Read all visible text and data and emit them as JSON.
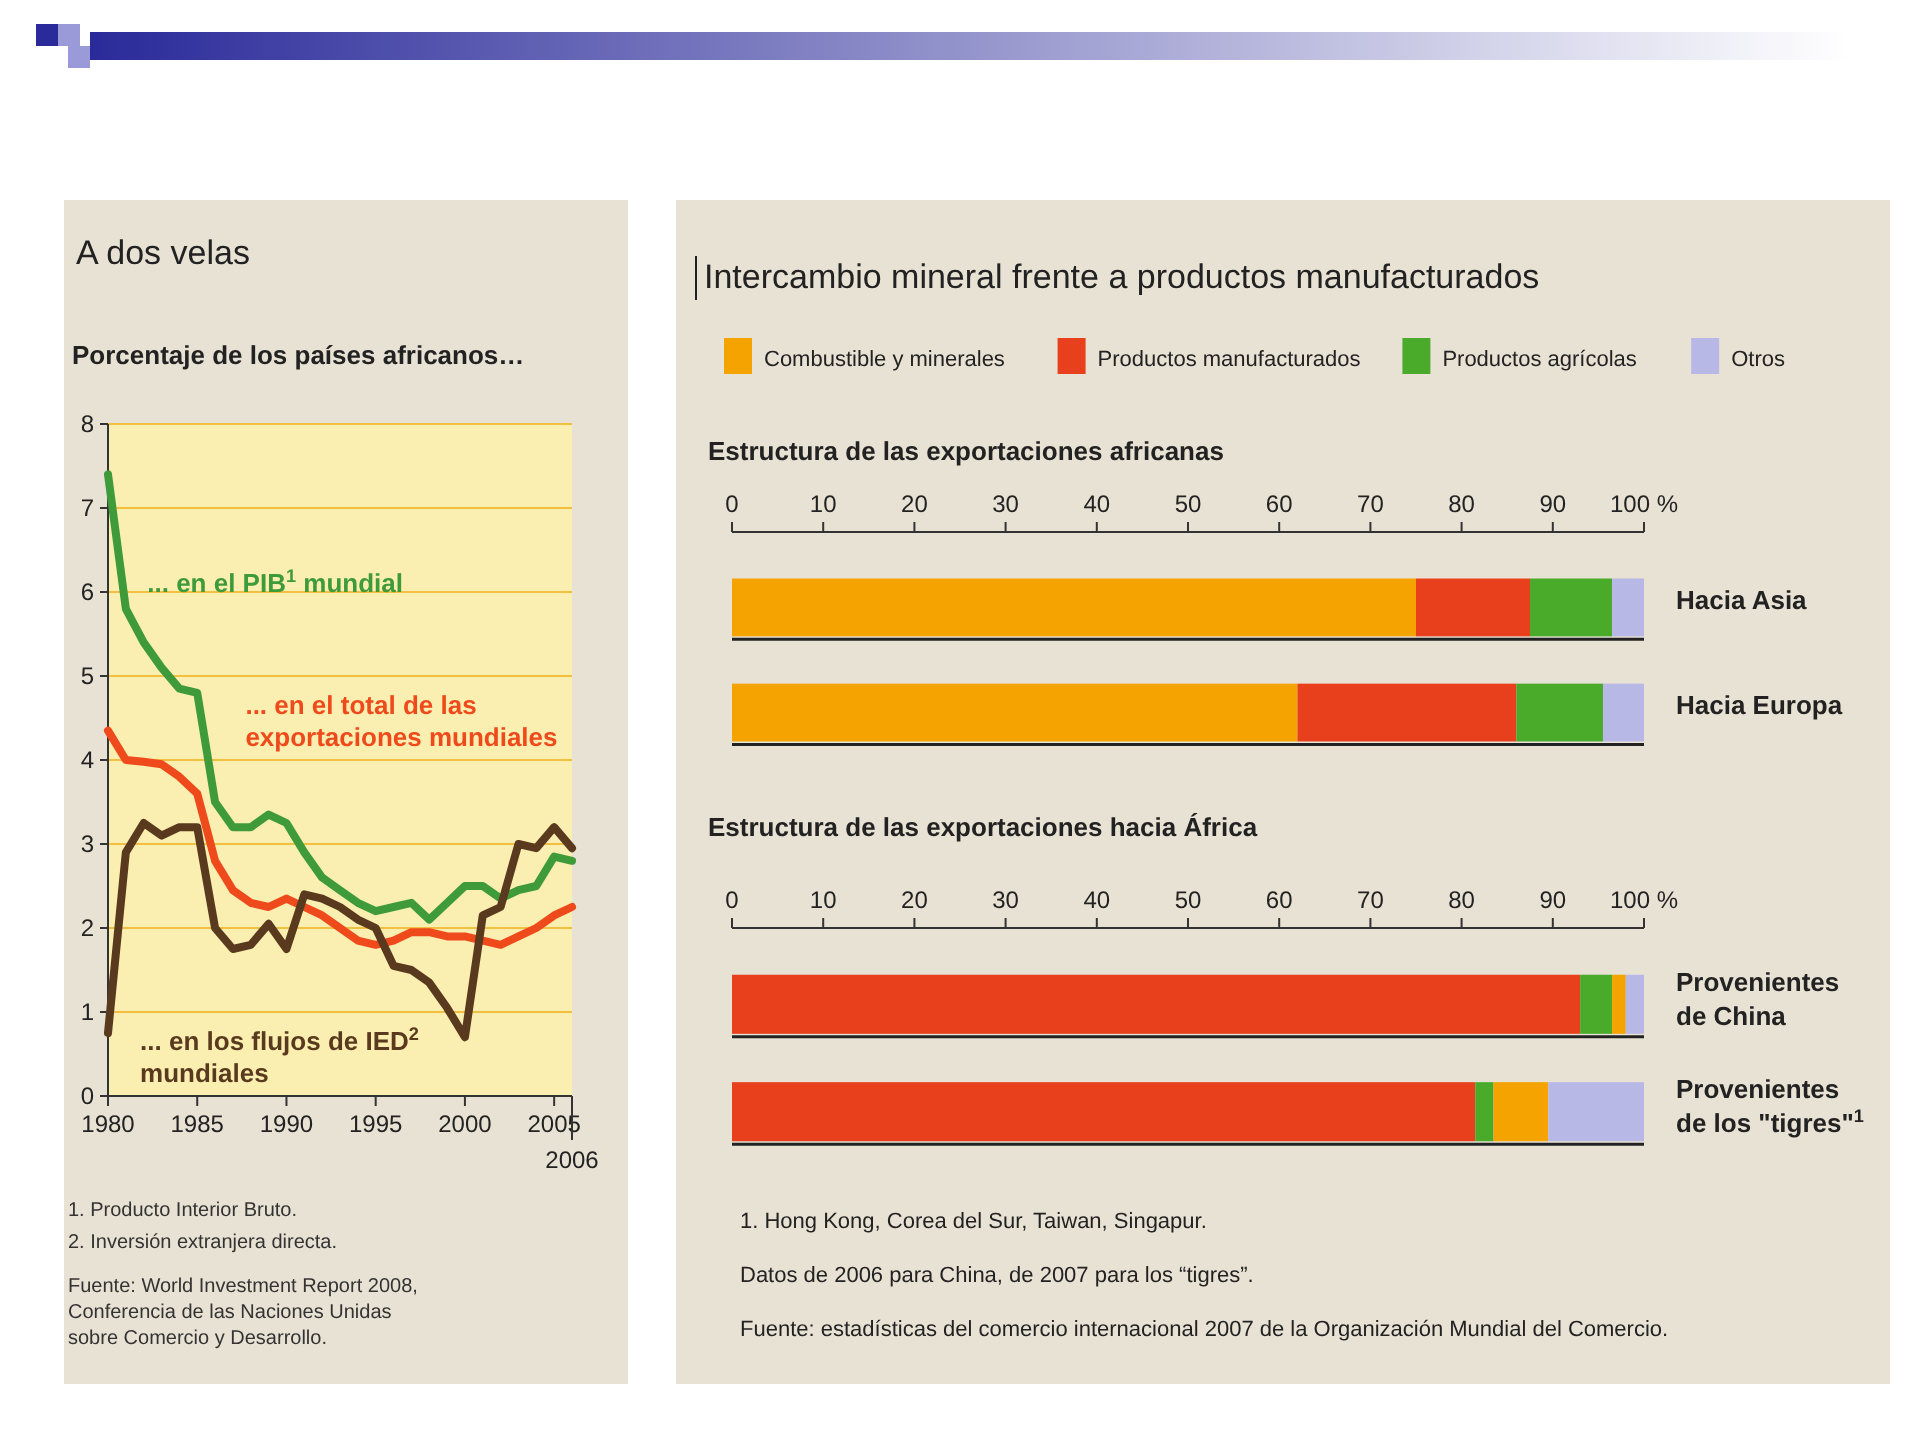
{
  "chart_data": [
    {
      "type": "line",
      "title": "A dos velas",
      "subtitle": "Porcentaje de los países africanos…",
      "x": [
        1980,
        1981,
        1982,
        1983,
        1984,
        1985,
        1986,
        1987,
        1988,
        1989,
        1990,
        1991,
        1992,
        1993,
        1994,
        1995,
        1996,
        1997,
        1998,
        1999,
        2000,
        2001,
        2002,
        2003,
        2004,
        2005,
        2006
      ],
      "series": [
        {
          "name": "... en el PIB$^{1}$ mundial",
          "color": "#3f9a3a",
          "values": [
            7.4,
            5.8,
            5.4,
            5.1,
            4.85,
            4.8,
            3.5,
            3.2,
            3.2,
            3.35,
            3.25,
            2.9,
            2.6,
            2.45,
            2.3,
            2.2,
            2.25,
            2.3,
            2.1,
            2.3,
            2.5,
            2.5,
            2.35,
            2.45,
            2.5,
            2.85,
            2.8
          ]
        },
        {
          "name": "... en el total de las\nexportaciones mundiales",
          "color": "#ee4a1c",
          "values": [
            4.35,
            4.0,
            3.98,
            3.95,
            3.8,
            3.6,
            2.8,
            2.45,
            2.3,
            2.25,
            2.35,
            2.25,
            2.15,
            2.0,
            1.85,
            1.8,
            1.85,
            1.95,
            1.95,
            1.9,
            1.9,
            1.85,
            1.8,
            1.9,
            2.0,
            2.15,
            2.25
          ]
        },
        {
          "name": "... en los flujos de IED$^{2}$\nmundiales",
          "color": "#5a3a1e",
          "values": [
            0.75,
            2.9,
            3.25,
            3.1,
            3.2,
            3.2,
            2.0,
            1.75,
            1.8,
            2.05,
            1.75,
            2.4,
            2.35,
            2.25,
            2.1,
            2.0,
            1.55,
            1.5,
            1.35,
            1.05,
            0.7,
            2.15,
            2.25,
            3.0,
            2.95,
            3.2,
            2.95
          ]
        }
      ],
      "xlim": [
        1980,
        2006
      ],
      "xticks": [
        1980,
        1985,
        1990,
        1995,
        2000,
        2005
      ],
      "ylim": [
        0,
        8
      ],
      "yticks": [
        0,
        1,
        2,
        3,
        4,
        5,
        6,
        7,
        8
      ],
      "grid": "y",
      "annotations": [
        "2006",
        "1. Producto Interior Bruto.",
        "2. Inversión extranjera directa.",
        "Fuente: World Investment Report 2008,\nConferencia de las Naciones Unidas\nsobre Comercio y Desarrollo."
      ]
    },
    {
      "type": "bar",
      "orientation": "horizontal",
      "stacked": true,
      "title": "Intercambio mineral frente a productos manufacturados",
      "subtitle": "Estructura de las exportaciones africanas",
      "categories": [
        "Hacia Asia",
        "Hacia Europa"
      ],
      "series": [
        {
          "name": "Combustible y minerales",
          "color": "#f5a300",
          "values": [
            75,
            62
          ]
        },
        {
          "name": "Productos manufacturados",
          "color": "#e8401c",
          "values": [
            12.5,
            24
          ]
        },
        {
          "name": "Productos agrícolas",
          "color": "#4aaa2a",
          "values": [
            9,
            9.5
          ]
        },
        {
          "name": "Otros",
          "color": "#b8b8e6",
          "values": [
            3.5,
            4.5
          ]
        }
      ],
      "xlim": [
        0,
        100
      ],
      "xticks": [
        0,
        10,
        20,
        30,
        40,
        50,
        60,
        70,
        80,
        90,
        {
          "value": 100,
          "label": "100 %"
        }
      ],
      "legend": "top"
    },
    {
      "type": "bar",
      "orientation": "horizontal",
      "stacked": true,
      "title": "Estructura de las exportaciones hacia África",
      "categories": [
        "Provenientes\nde China",
        "Provenientes\nde los \"tigres\"$^{1}$"
      ],
      "series": [
        {
          "color": "#e8401c",
          "values": [
            93,
            81.5
          ]
        },
        {
          "color": "#4aaa2a",
          "values": [
            3.5,
            2
          ]
        },
        {
          "color": "#f5a300",
          "values": [
            1.5,
            6
          ]
        },
        {
          "color": "#b8b8e6",
          "values": [
            2,
            10.5
          ]
        }
      ],
      "xlim": [
        0,
        100
      ],
      "xticks": [
        0,
        10,
        20,
        30,
        40,
        50,
        60,
        70,
        80,
        90,
        {
          "value": 100,
          "label": "100 %"
        }
      ],
      "annotations": [
        "1. Hong Kong, Corea del Sur, Taiwan, Singapur.",
        "Datos de 2006 para China, de 2007 para los “tigres”.",
        "Fuente: estadísticas del comercio internacional 2007 de la Organización Mundial del Comercio."
      ]
    }
  ]
}
